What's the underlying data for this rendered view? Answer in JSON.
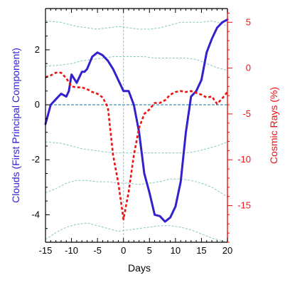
{
  "colors": {
    "clouds": "#3322cc",
    "cosmic": "#ee1111",
    "envelope": "#88c8c0",
    "zero_line": "#2e86a6",
    "frame": "#000000"
  },
  "chart_data": {
    "type": "line",
    "xlabel": "Days",
    "ylabel_left": "Clouds  (First Principal Component)",
    "ylabel_right": "Cosmic Rays (%)",
    "xlim": [
      -15,
      20
    ],
    "ylim_left": [
      -5,
      3.5
    ],
    "ylim_right": [
      -19,
      6.5
    ],
    "x_ticks": [
      -15,
      -10,
      -5,
      0,
      5,
      10,
      15,
      20
    ],
    "x_tick_labels": [
      "-15",
      "-10",
      "-5",
      "0",
      "5",
      "10",
      "15",
      "20"
    ],
    "y_left_ticks": [
      2,
      0,
      -2,
      -4
    ],
    "y_left_tick_labels": [
      "2",
      "0",
      "-2",
      "-4"
    ],
    "y_right_ticks": [
      5,
      0,
      -5,
      -10,
      -15
    ],
    "y_right_tick_labels": [
      "5",
      "0",
      "-5",
      "-10",
      "-15"
    ],
    "grid": false,
    "reference_lines": {
      "vertical_x": 0,
      "horizontal_y_left": 0
    },
    "series": [
      {
        "axis": "left",
        "style": "solid",
        "x": [
          -15,
          -14,
          -13,
          -12,
          -11,
          -10.5,
          -10,
          -9,
          -8,
          -7.5,
          -7,
          -6,
          -5,
          -4,
          -3,
          -2,
          -1,
          0,
          1,
          2,
          3,
          4,
          5,
          6,
          7,
          8,
          9,
          10,
          11,
          12,
          13,
          14,
          15,
          16,
          17,
          18,
          19,
          20
        ],
        "values": [
          -0.7,
          0.0,
          0.2,
          0.4,
          0.3,
          0.5,
          1.1,
          0.8,
          1.2,
          1.2,
          1.3,
          1.75,
          1.9,
          1.8,
          1.6,
          1.3,
          0.9,
          0.5,
          0.5,
          0.0,
          -1.0,
          -2.5,
          -3.2,
          -4.0,
          -4.05,
          -4.25,
          -4.1,
          -3.7,
          -2.8,
          -1.0,
          0.3,
          0.5,
          0.9,
          1.9,
          2.4,
          2.8,
          3.0,
          3.1
        ]
      },
      {
        "axis": "right",
        "style": "dashed",
        "x": [
          -15,
          -14,
          -13,
          -12,
          -11,
          -10,
          -9,
          -8,
          -7,
          -6,
          -5,
          -4,
          -3,
          -2,
          -1,
          0,
          1,
          2,
          3,
          4,
          5,
          6,
          7,
          8,
          9,
          10,
          11,
          12,
          13,
          14,
          15,
          16,
          17,
          18,
          19,
          20
        ],
        "values": [
          -1.0,
          -0.8,
          -0.5,
          -0.5,
          -1.1,
          -2.0,
          -2.1,
          -2.1,
          -2.3,
          -2.6,
          -2.8,
          -3.2,
          -4.3,
          -9.5,
          -12.5,
          -16.5,
          -13.5,
          -9.5,
          -6.5,
          -5.0,
          -4.5,
          -3.8,
          -3.8,
          -3.5,
          -2.9,
          -2.6,
          -2.5,
          -2.6,
          -2.5,
          -2.7,
          -2.9,
          -3.2,
          -3.1,
          -3.9,
          -3.3,
          -2.6
        ]
      }
    ],
    "envelopes": [
      {
        "axis": "left",
        "x": [
          -15,
          -12,
          -9,
          -7,
          -5,
          -3,
          -1,
          1,
          3,
          5,
          7,
          9,
          11,
          13,
          15,
          17,
          19,
          20
        ],
        "values": [
          3.05,
          3.0,
          2.85,
          2.8,
          2.75,
          2.8,
          2.85,
          2.8,
          2.75,
          2.75,
          2.8,
          2.9,
          3.0,
          3.0,
          3.0,
          3.05,
          2.95,
          2.85
        ]
      },
      {
        "axis": "left",
        "x": [
          -15,
          -12,
          -10,
          -8,
          -6,
          -4,
          -2,
          0,
          2,
          4,
          6,
          8,
          10,
          12,
          14,
          16,
          18,
          20
        ],
        "values": [
          1.4,
          1.45,
          1.5,
          1.6,
          1.65,
          1.7,
          1.75,
          1.75,
          1.75,
          1.75,
          1.7,
          1.7,
          1.7,
          1.7,
          1.65,
          1.5,
          1.35,
          1.25
        ]
      },
      {
        "axis": "left",
        "x": [
          -15,
          -12,
          -10,
          -8,
          -6,
          -4,
          -2,
          0,
          2,
          4,
          6,
          8,
          10,
          12,
          14,
          16,
          18,
          20
        ],
        "values": [
          -1.35,
          -1.4,
          -1.5,
          -1.6,
          -1.65,
          -1.7,
          -1.75,
          -1.75,
          -1.75,
          -1.75,
          -1.75,
          -1.75,
          -1.75,
          -1.75,
          -1.7,
          -1.6,
          -1.5,
          -1.35
        ]
      },
      {
        "axis": "left",
        "x": [
          -15,
          -13,
          -11,
          -9,
          -7,
          -5,
          -3,
          -1,
          1,
          3,
          5,
          7,
          9,
          11,
          13,
          15,
          17,
          20
        ],
        "values": [
          -3.2,
          -3.05,
          -2.85,
          -2.75,
          -2.75,
          -2.8,
          -2.8,
          -2.85,
          -2.85,
          -2.9,
          -2.85,
          -2.8,
          -2.7,
          -2.7,
          -2.75,
          -2.85,
          -3.0,
          -3.35
        ]
      },
      {
        "axis": "left",
        "x": [
          -15,
          -13,
          -11,
          -9,
          -7,
          -5,
          -3,
          -1,
          1,
          3,
          5,
          7,
          9,
          11,
          13,
          15,
          17,
          20
        ],
        "values": [
          -4.9,
          -4.65,
          -4.45,
          -4.35,
          -4.3,
          -4.4,
          -4.5,
          -4.6,
          -4.55,
          -4.5,
          -4.45,
          -4.4,
          -4.4,
          -4.45,
          -4.55,
          -4.7,
          -4.85,
          -5.0
        ]
      }
    ]
  }
}
